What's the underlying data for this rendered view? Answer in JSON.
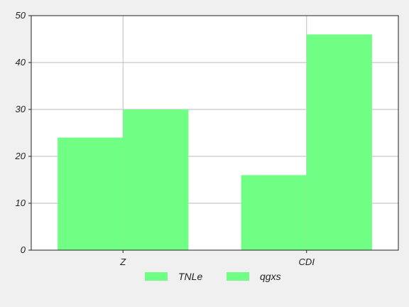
{
  "chart_data": {
    "type": "bar",
    "categories": [
      "Z",
      "CDI"
    ],
    "series": [
      {
        "name": "TNLe",
        "values": [
          24,
          16
        ],
        "color": "#70ff84"
      },
      {
        "name": "qgxs",
        "values": [
          30,
          46
        ],
        "color": "#70ff84"
      }
    ],
    "ylim": [
      0,
      50
    ],
    "yticks": [
      0,
      10,
      20,
      30,
      40,
      50
    ],
    "grid": true,
    "legend_position": "bottom",
    "colors": {
      "background": "#f0f0f0",
      "plot_background": "#ffffff",
      "grid": "#c8c8c8",
      "axis": "#222222"
    }
  }
}
